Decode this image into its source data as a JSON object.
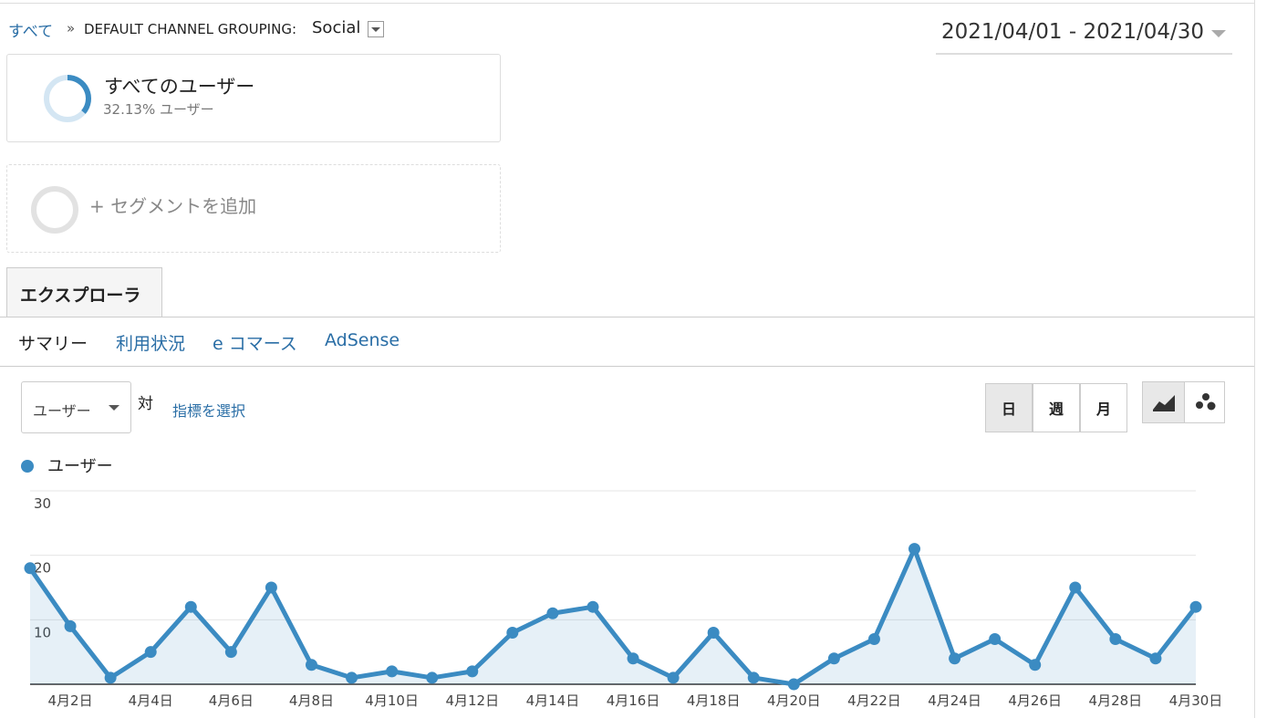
{
  "breadcrumb": {
    "root": "すべて",
    "separator": "»",
    "dimension": "DEFAULT CHANNEL GROUPING:",
    "value": "Social"
  },
  "date_range": "2021/04/01 - 2021/04/30",
  "segments": [
    {
      "name": "すべてのユーザー",
      "detail": "32.13% ユーザー"
    }
  ],
  "add_segment": "+ セグメントを追加",
  "tabs": [
    "エクスプローラ"
  ],
  "subtabs": [
    "サマリー",
    "利用状況",
    "e コマース",
    "AdSense"
  ],
  "metric_select": "ユーザー",
  "versus": "対",
  "select_metric": "指標を選択",
  "period_buttons": [
    "日",
    "週",
    "月"
  ],
  "chart_data": {
    "type": "line",
    "categories": [
      null,
      "4月2日",
      null,
      "4月4日",
      null,
      "4月6日",
      null,
      "4月8日",
      null,
      "4月10日",
      null,
      "4月12日",
      null,
      "4月14日",
      null,
      "4月16日",
      null,
      "4月18日",
      null,
      "4月20日",
      null,
      "4月22日",
      null,
      "4月24日",
      null,
      "4月26日",
      null,
      "4月28日",
      null,
      "4月30日"
    ],
    "series": [
      {
        "name": "ユーザー",
        "color": "#3b8bc2",
        "values": [
          18,
          9,
          1,
          5,
          12,
          5,
          15,
          3,
          1,
          2,
          1,
          2,
          8,
          11,
          12,
          4,
          1,
          8,
          1,
          0,
          4,
          7,
          21,
          4,
          7,
          3,
          15,
          7,
          4,
          12
        ]
      }
    ],
    "ylim": [
      0,
      30
    ],
    "yticks": [
      10,
      20,
      30
    ],
    "grid": true
  }
}
